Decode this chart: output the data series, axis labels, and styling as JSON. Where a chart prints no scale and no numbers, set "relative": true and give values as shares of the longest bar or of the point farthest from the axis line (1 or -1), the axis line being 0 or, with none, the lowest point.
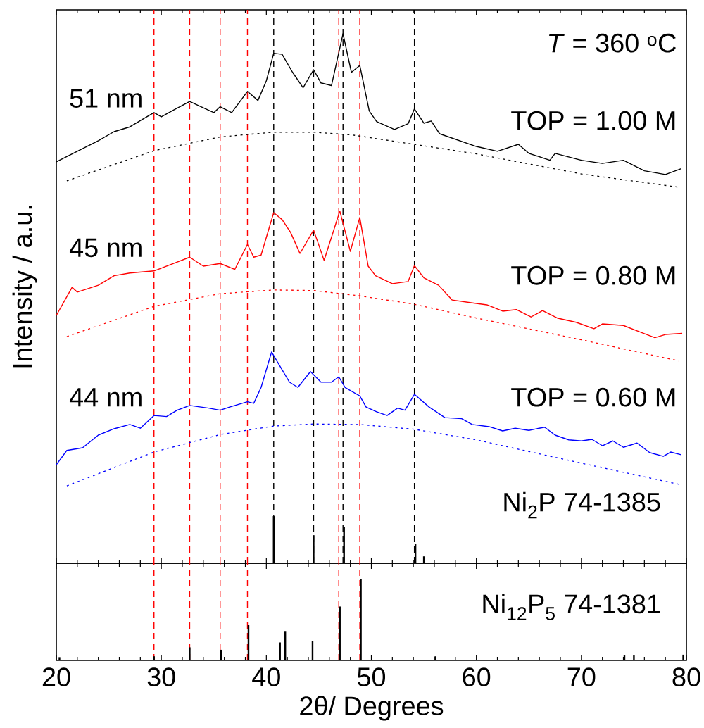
{
  "chart_data": [
    {
      "type": "line",
      "relative": true,
      "ylabel": "Intensity / a.u.",
      "xlim": [
        20,
        80
      ],
      "xticks": [
        20,
        30,
        40,
        50,
        60,
        70,
        80
      ],
      "tick_labels": false,
      "grid": false,
      "annotations": [
        "51 nm",
        "45 nm",
        "44 nm",
        "*T* = 360 $^{o}$C",
        "TOP = 1.00 M",
        "TOP = 0.80 M",
        "TOP = 0.60 M",
        "Ni$_{2}$P   74-1385"
      ],
      "ref_lines": [
        {
          "axis": "x",
          "value": 40.7,
          "color": "#000000",
          "line_style": "dashed"
        },
        {
          "axis": "x",
          "value": 44.5,
          "color": "#000000",
          "line_style": "dashed"
        },
        {
          "axis": "x",
          "value": 47.3,
          "color": "#000000",
          "line_style": "dashed"
        },
        {
          "axis": "x",
          "value": 54.1,
          "color": "#000000",
          "line_style": "dashed"
        },
        {
          "axis": "x",
          "value": 29.3,
          "color": "#ff0000",
          "line_style": "dashed"
        },
        {
          "axis": "x",
          "value": 32.7,
          "color": "#ff0000",
          "line_style": "dashed"
        },
        {
          "axis": "x",
          "value": 35.6,
          "color": "#ff0000",
          "line_style": "dashed"
        },
        {
          "axis": "x",
          "value": 38.2,
          "color": "#ff0000",
          "line_style": "dashed"
        },
        {
          "axis": "x",
          "value": 46.9,
          "color": "#ff0000",
          "line_style": "dashed"
        },
        {
          "axis": "x",
          "value": 48.9,
          "color": "#ff0000",
          "line_style": "dashed"
        }
      ],
      "series": [
        {
          "color": "#000000",
          "line_style": "solid",
          "x": [
            20,
            22,
            24,
            25.5,
            27,
            29.3,
            30,
            31,
            32.7,
            34,
            35,
            35.6,
            36.7,
            38.2,
            39.2,
            40,
            40.7,
            41.5,
            42.5,
            43.5,
            44.5,
            45.2,
            46.2,
            47.3,
            48.1,
            48.9,
            49.8,
            50.5,
            52.2,
            53.5,
            54.1,
            55,
            55.7,
            56.5,
            60,
            62,
            64,
            65,
            67,
            67.5,
            70,
            72,
            74,
            76,
            78,
            79.5
          ],
          "values": [
            0.758,
            0.778,
            0.798,
            0.815,
            0.824,
            0.851,
            0.843,
            0.854,
            0.872,
            0.86,
            0.851,
            0.862,
            0.851,
            0.891,
            0.874,
            0.911,
            0.963,
            0.961,
            0.927,
            0.898,
            0.932,
            0.907,
            0.902,
            1,
            0.927,
            0.94,
            0.854,
            0.834,
            0.819,
            0.83,
            0.858,
            0.831,
            0.835,
            0.811,
            0.787,
            0.778,
            0.791,
            0.774,
            0.761,
            0.774,
            0.761,
            0.755,
            0.761,
            0.741,
            0.734,
            0.745
          ]
        },
        {
          "color": "#000000",
          "line_style": "dotted",
          "x": [
            21,
            29.3,
            35.6,
            40.7,
            44.5,
            48.1,
            54.1,
            60,
            70,
            79.3
          ],
          "values": [
            0.722,
            0.779,
            0.805,
            0.814,
            0.814,
            0.809,
            0.791,
            0.773,
            0.735,
            0.71
          ]
        },
        {
          "color": "#ff0000",
          "line_style": "solid",
          "x": [
            20,
            21.5,
            22,
            24,
            25.5,
            27,
            29.3,
            32.7,
            34,
            35.6,
            37,
            38.2,
            38.8,
            39.5,
            40.7,
            41.5,
            42.3,
            43.2,
            44.5,
            45.5,
            47,
            48,
            48.9,
            49.7,
            50.4,
            52,
            53.5,
            54.1,
            55,
            56.4,
            57.7,
            59.5,
            61,
            62.5,
            63.8,
            65.2,
            66.3,
            67.7,
            69.5,
            71.2,
            72,
            74,
            75.3,
            77,
            78,
            79.6
          ],
          "values": [
            0.468,
            0.521,
            0.512,
            0.525,
            0.543,
            0.548,
            0.552,
            0.578,
            0.561,
            0.566,
            0.555,
            0.602,
            0.578,
            0.582,
            0.662,
            0.649,
            0.625,
            0.585,
            0.629,
            0.572,
            0.665,
            0.589,
            0.653,
            0.561,
            0.543,
            0.528,
            0.532,
            0.562,
            0.539,
            0.525,
            0.497,
            0.492,
            0.488,
            0.476,
            0.479,
            0.465,
            0.477,
            0.463,
            0.455,
            0.443,
            0.452,
            0.449,
            0.439,
            0.426,
            0.432,
            0.434
          ]
        },
        {
          "color": "#ff0000",
          "line_style": "dotted",
          "x": [
            21,
            29.3,
            35.6,
            40.7,
            44.5,
            48.9,
            54.1,
            60,
            70,
            79.3
          ],
          "values": [
            0.428,
            0.485,
            0.509,
            0.516,
            0.515,
            0.505,
            0.489,
            0.463,
            0.422,
            0.382
          ]
        },
        {
          "color": "#0000ff",
          "line_style": "solid",
          "x": [
            20,
            21,
            22.5,
            24,
            25.5,
            27,
            28,
            29.3,
            30.5,
            31.5,
            32.7,
            34.5,
            35.6,
            36.5,
            38.2,
            38.8,
            39.5,
            40.5,
            41.3,
            42.2,
            43,
            44.2,
            45.2,
            46.2,
            46.9,
            47.5,
            48.9,
            49.5,
            50.5,
            51.5,
            52.5,
            53.2,
            54.1,
            55.5,
            57,
            58.6,
            59.6,
            61.2,
            62.5,
            63.7,
            65,
            66.5,
            67.5,
            68.8,
            70,
            71,
            72,
            73,
            74,
            75.3,
            76.5,
            77.8,
            78.5,
            79.5
          ],
          "values": [
            0.186,
            0.213,
            0.218,
            0.242,
            0.254,
            0.262,
            0.255,
            0.279,
            0.277,
            0.289,
            0.298,
            0.293,
            0.289,
            0.295,
            0.305,
            0.302,
            0.332,
            0.399,
            0.372,
            0.342,
            0.332,
            0.362,
            0.342,
            0.342,
            0.352,
            0.332,
            0.316,
            0.295,
            0.286,
            0.279,
            0.293,
            0.289,
            0.319,
            0.295,
            0.275,
            0.273,
            0.262,
            0.258,
            0.25,
            0.255,
            0.251,
            0.257,
            0.242,
            0.233,
            0.231,
            0.234,
            0.222,
            0.231,
            0.219,
            0.227,
            0.209,
            0.202,
            0.21,
            0.205
          ]
        },
        {
          "color": "#0000ff",
          "line_style": "dotted",
          "x": [
            21,
            29.3,
            35.6,
            40.7,
            44.5,
            48.9,
            54.1,
            60,
            70,
            79.3
          ],
          "values": [
            0.146,
            0.21,
            0.243,
            0.259,
            0.263,
            0.262,
            0.253,
            0.233,
            0.189,
            0.149
          ]
        },
        {
          "type": "bar",
          "color": "#000000",
          "x": [
            40.7,
            44.5,
            47.4,
            54.2,
            55.0
          ],
          "values": [
            0.089,
            0.053,
            0.069,
            0.036,
            0.013
          ]
        }
      ]
    },
    {
      "type": "bar",
      "relative": true,
      "xlabel": "2θ/ Degrees",
      "xlim": [
        20,
        80
      ],
      "xticks": [
        20,
        30,
        40,
        50,
        60,
        70,
        80
      ],
      "tick_labels": "x",
      "grid": false,
      "annotations": [
        "Ni$_{12}$P$_{5}$   74-1381"
      ],
      "ref_lines": [
        {
          "axis": "x",
          "value": 29.3,
          "color": "#ff0000",
          "line_style": "dashed"
        },
        {
          "axis": "x",
          "value": 32.7,
          "color": "#ff0000",
          "line_style": "dashed"
        },
        {
          "axis": "x",
          "value": 35.6,
          "color": "#ff0000",
          "line_style": "dashed"
        },
        {
          "axis": "x",
          "value": 38.2,
          "color": "#ff0000",
          "line_style": "dashed"
        },
        {
          "axis": "x",
          "value": 46.9,
          "color": "#ff0000",
          "line_style": "dashed"
        },
        {
          "axis": "x",
          "value": 48.9,
          "color": "#ff0000",
          "line_style": "dashed"
        }
      ],
      "series": [
        {
          "color": "#000000",
          "x": [
            20.3,
            29.3,
            32.7,
            35.7,
            38.3,
            41.3,
            41.8,
            44.4,
            47.0,
            49.0,
            56.1,
            74.1,
            75.0,
            79.7
          ],
          "values": [
            0.04,
            0.05,
            0.16,
            0.13,
            0.44,
            0.22,
            0.36,
            0.24,
            0.66,
            1,
            0.05,
            0.06,
            0.06,
            0.07
          ]
        }
      ]
    }
  ]
}
